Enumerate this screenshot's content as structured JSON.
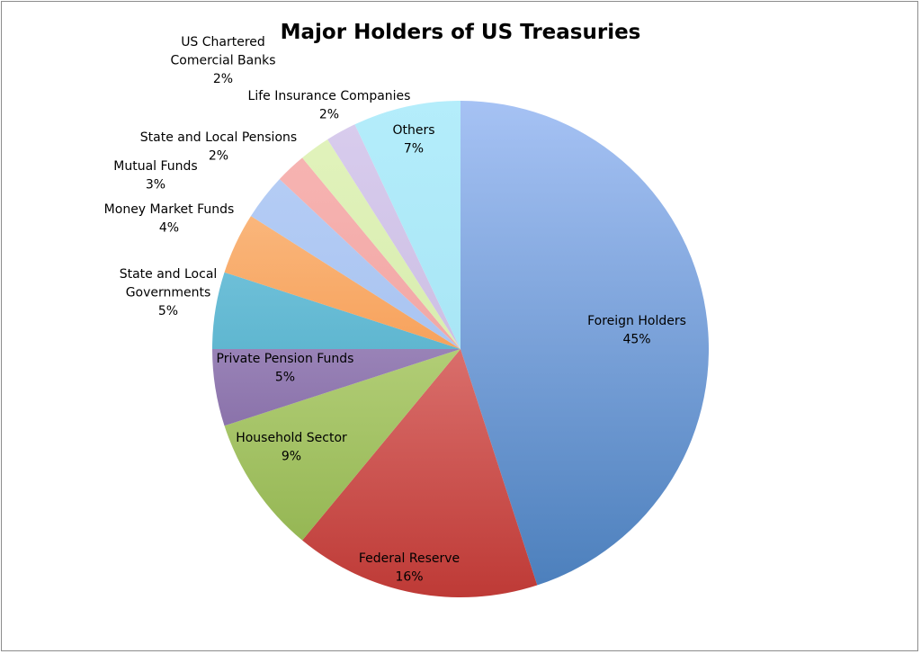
{
  "chart_data": {
    "type": "pie",
    "title": "Major Holders of US Treasuries",
    "start_angle": "12 o'clock, clockwise",
    "slices": [
      {
        "name": "Foreign Holders",
        "value": 45,
        "label": "45%",
        "color": "#4a7ebb",
        "light": "#a6c2f4"
      },
      {
        "name": "Federal Reserve",
        "value": 16,
        "label": "16%",
        "color": "#be3a36",
        "light": "#f5a3a1"
      },
      {
        "name": "Household Sector",
        "value": 9,
        "label": "9%",
        "color": "#8db04a",
        "light": "#d6eba2"
      },
      {
        "name": "Private Pension Funds",
        "value": 5,
        "label": "5%",
        "color": "#6a4f8e",
        "light": "#c8b6e0"
      },
      {
        "name": "State and Local Governments",
        "value": 5,
        "label": "5%",
        "color": "#2f9ab6",
        "light": "#8fd3ea"
      },
      {
        "name": "Money Market Funds",
        "value": 4,
        "label": "4%",
        "color": "#f27d22",
        "light": "#fcc796"
      },
      {
        "name": "Mutual Funds",
        "value": 3,
        "label": "3%",
        "color": "#9ab8ec",
        "light": "#b9d0f6"
      },
      {
        "name": "State and Local Pensions",
        "value": 2,
        "label": "2%",
        "color": "#eb9896",
        "light": "#f8b7b5"
      },
      {
        "name": "Life Insurance Companies",
        "value": 2,
        "label": "2%",
        "color": "#cfe7a2",
        "light": "#e2f3bd"
      },
      {
        "name": "US Chartered Comercial Banks",
        "value": 2,
        "label": "2%",
        "color": "#c0b2da",
        "light": "#d9cdee"
      },
      {
        "name": "Others",
        "value": 7,
        "label": "7%",
        "color": "#9edff0",
        "light": "#b4edfb"
      }
    ]
  }
}
